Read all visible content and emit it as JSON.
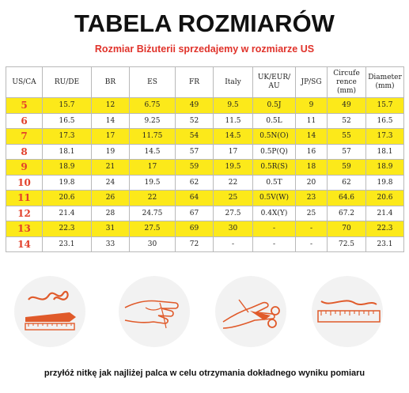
{
  "title": "TABELA ROZMIARÓW",
  "subtitle": "Rozmiar Biżuterii sprzedajemy w rozmiarze US",
  "table": {
    "headers": [
      {
        "l1": "US/CA",
        "l2": ""
      },
      {
        "l1": "RU/DE",
        "l2": ""
      },
      {
        "l1": "BR",
        "l2": ""
      },
      {
        "l1": "ES",
        "l2": ""
      },
      {
        "l1": "FR",
        "l2": ""
      },
      {
        "l1": "Italy",
        "l2": ""
      },
      {
        "l1": "UK/EUR/",
        "l2": "AU"
      },
      {
        "l1": "JP/SG",
        "l2": ""
      },
      {
        "l1": "Circufe",
        "l2": "rence"
      },
      {
        "l1": "Diameter",
        "l2": ""
      }
    ],
    "units": [
      "",
      "",
      "",
      "",
      "",
      "",
      "",
      "",
      "(mm)",
      "(mm)"
    ],
    "rows": [
      [
        "5",
        "15.7",
        "12",
        "6.75",
        "49",
        "9.5",
        "0.5J",
        "9",
        "49",
        "15.7"
      ],
      [
        "6",
        "16.5",
        "14",
        "9.25",
        "52",
        "11.5",
        "0.5L",
        "11",
        "52",
        "16.5"
      ],
      [
        "7",
        "17.3",
        "17",
        "11.75",
        "54",
        "14.5",
        "0.5N(O)",
        "14",
        "55",
        "17.3"
      ],
      [
        "8",
        "18.1",
        "19",
        "14.5",
        "57",
        "17",
        "0.5P(Q)",
        "16",
        "57",
        "18.1"
      ],
      [
        "9",
        "18.9",
        "21",
        "17",
        "59",
        "19.5",
        "0.5R(S)",
        "18",
        "59",
        "18.9"
      ],
      [
        "10",
        "19.8",
        "24",
        "19.5",
        "62",
        "22",
        "0.5T",
        "20",
        "62",
        "19.8"
      ],
      [
        "11",
        "20.6",
        "26",
        "22",
        "64",
        "25",
        "0.5V(W)",
        "23",
        "64.6",
        "20.6"
      ],
      [
        "12",
        "21.4",
        "28",
        "24.75",
        "67",
        "27.5",
        "0.4X(Y)",
        "25",
        "67.2",
        "21.4"
      ],
      [
        "13",
        "22.3",
        "31",
        "27.5",
        "69",
        "30",
        "-",
        "-",
        "70",
        "22.3"
      ],
      [
        "14",
        "23.1",
        "33",
        "30",
        "72",
        "-",
        "-",
        "-",
        "72.5",
        "23.1"
      ]
    ]
  },
  "caption": "przyłóż nitkę jak najliżej palca w celu otrzymania dokładnego wyniku pomiaru",
  "colors": {
    "highlight": "#fce91a",
    "accent": "#e2402b",
    "subtitle": "#e0322a"
  },
  "icons": [
    "thread-pen-icon",
    "hand-thread-icon",
    "scissors-thread-icon",
    "ruler-icon"
  ]
}
